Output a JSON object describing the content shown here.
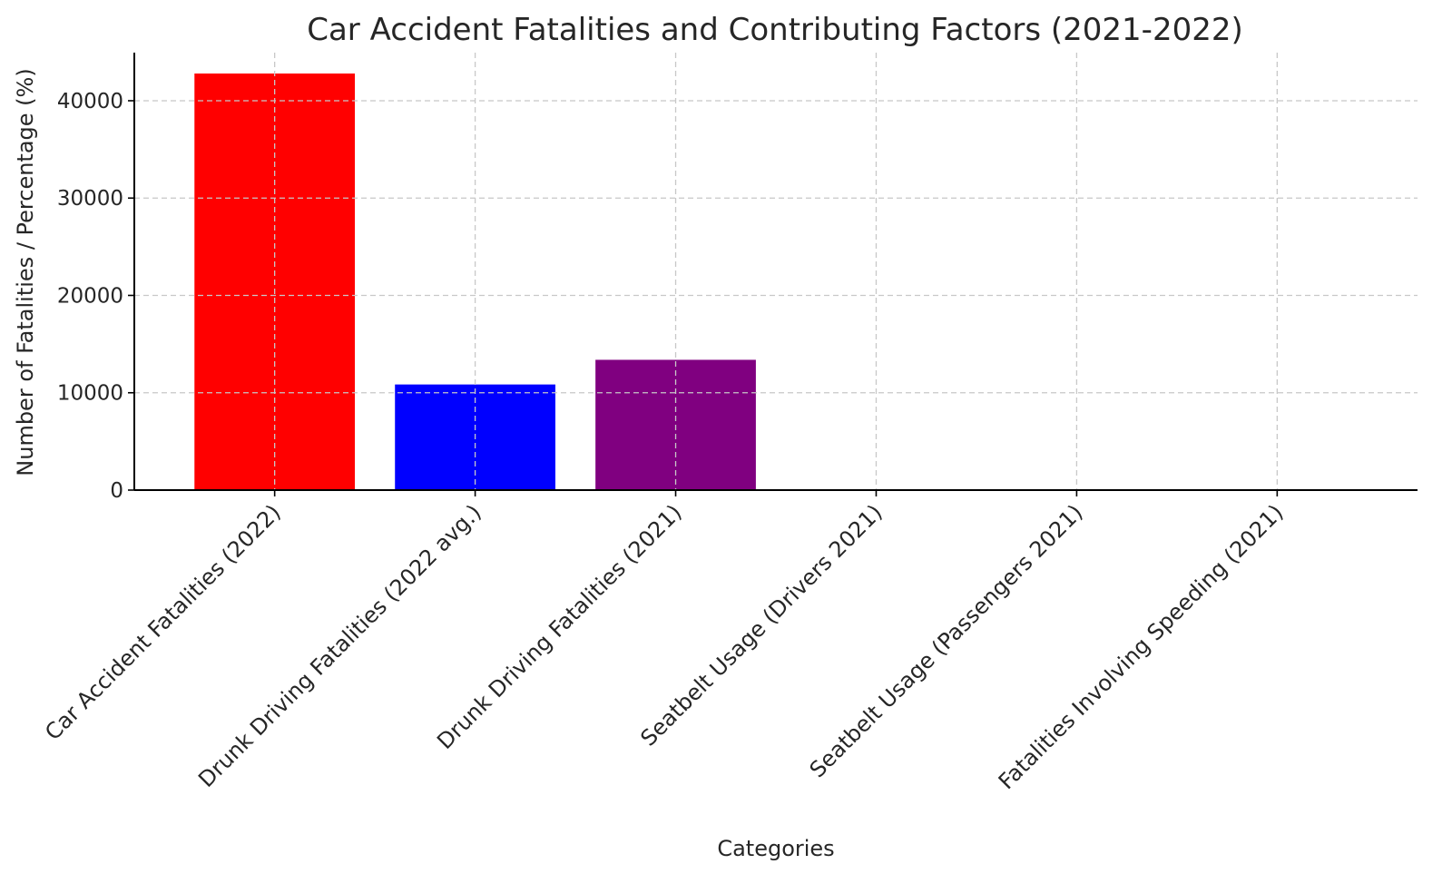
{
  "chart_data": {
    "type": "bar",
    "title": "Car Accident Fatalities and Contributing Factors (2021-2022)",
    "xlabel": "Categories",
    "ylabel": "Number of Fatalities / Percentage (%)",
    "categories": [
      "Car Accident Fatalities (2022)",
      "Drunk Driving Fatalities (2022 avg.)",
      "Drunk Driving Fatalities (2021)",
      "Seatbelt Usage (Drivers 2021)",
      "Seatbelt Usage (Passengers 2021)",
      "Fatalities Involving Speeding (2021)"
    ],
    "values": [
      42795,
      10850,
      13384,
      91.6,
      88.0,
      29
    ],
    "colors": [
      "#ff0000",
      "#0000ff",
      "#800080",
      "#008000",
      "#ffa500",
      "#ffff00"
    ],
    "yticks": [
      0,
      10000,
      20000,
      30000,
      40000
    ],
    "ylim": [
      0,
      44940
    ],
    "grid": true,
    "legend": "none"
  }
}
